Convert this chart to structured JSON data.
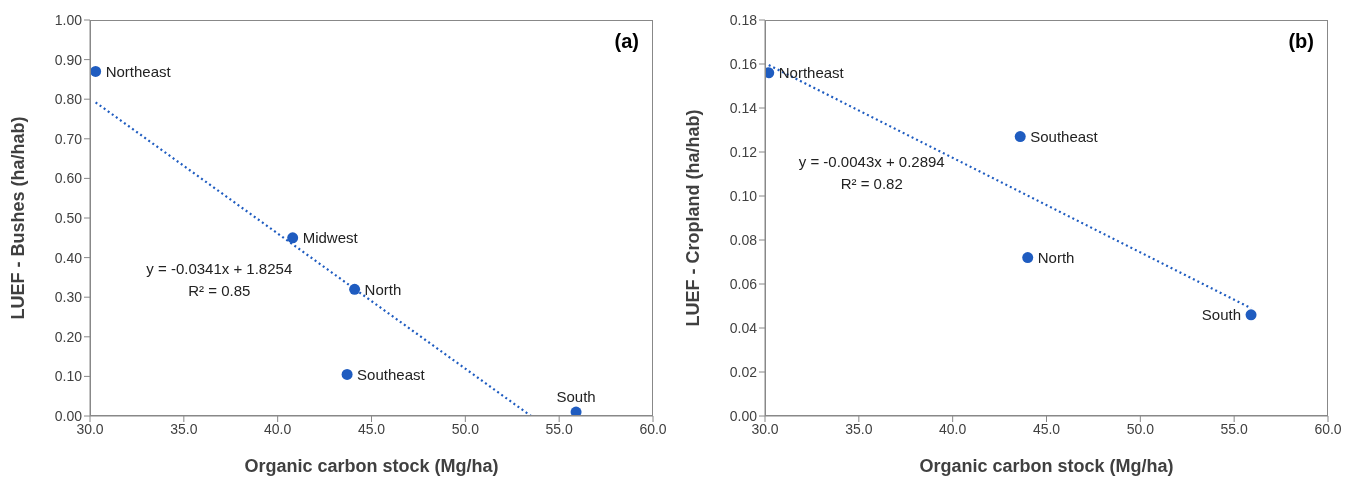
{
  "chart_data": [
    {
      "type": "scatter",
      "title": "(a)",
      "xlabel": "Organic carbon stock (Mg/ha)",
      "ylabel": "LUEF - Bushes (ha/hab)",
      "marker": "circle",
      "xlim": [
        30,
        60
      ],
      "xticks": [
        {
          "value": 30,
          "label": "30.0"
        },
        {
          "value": 35,
          "label": "35.0"
        },
        {
          "value": 40,
          "label": "40.0"
        },
        {
          "value": 45,
          "label": "45.0"
        },
        {
          "value": 50,
          "label": "50.0"
        },
        {
          "value": 55,
          "label": "55.0"
        },
        {
          "value": 60,
          "label": "60.0"
        }
      ],
      "ylim": [
        0,
        1
      ],
      "yticks": [
        {
          "value": 0,
          "label": "0.00"
        },
        {
          "value": 0.1,
          "label": "0.10"
        },
        {
          "value": 0.2,
          "label": "0.20"
        },
        {
          "value": 0.3,
          "label": "0.30"
        },
        {
          "value": 0.4,
          "label": "0.40"
        },
        {
          "value": 0.5,
          "label": "0.50"
        },
        {
          "value": 0.6,
          "label": "0.60"
        },
        {
          "value": 0.7,
          "label": "0.70"
        },
        {
          "value": 0.8,
          "label": "0.80"
        },
        {
          "value": 0.9,
          "label": "0.90"
        },
        {
          "value": 1,
          "label": "1.00"
        }
      ],
      "series": [
        {
          "type": "scatter",
          "color": "#1f5cc0",
          "x": [
            30.3,
            40.8,
            44.1,
            43.7,
            55.9
          ],
          "values": [
            0.87,
            0.45,
            0.32,
            0.105,
            0.01
          ]
        },
        {
          "type": "line",
          "color": "#1f5cc0",
          "line_style": "dotted",
          "marker": "none",
          "x": [
            30.3,
            53.5
          ],
          "values": [
            0.792,
            0
          ]
        }
      ],
      "annotations": [
        {
          "text": "Northeast",
          "x": 30.3,
          "y": 0.87
        },
        {
          "text": "Midwest",
          "x": 40.8,
          "y": 0.45
        },
        {
          "text": "North",
          "x": 44.1,
          "y": 0.32
        },
        {
          "text": "Southeast",
          "x": 43.7,
          "y": 0.105
        },
        {
          "text": "South",
          "x": 55.9,
          "y": 0.01
        },
        "y = -0.0341x + 1.8254",
        "R² = 0.85"
      ]
    },
    {
      "type": "scatter",
      "title": "(b)",
      "xlabel": "Organic carbon stock (Mg/ha)",
      "ylabel": "LUEF - Cropland (ha/hab)",
      "marker": "circle",
      "xlim": [
        30,
        60
      ],
      "xticks": [
        {
          "value": 30,
          "label": "30.0"
        },
        {
          "value": 35,
          "label": "35.0"
        },
        {
          "value": 40,
          "label": "40.0"
        },
        {
          "value": 45,
          "label": "45.0"
        },
        {
          "value": 50,
          "label": "50.0"
        },
        {
          "value": 55,
          "label": "55.0"
        },
        {
          "value": 60,
          "label": "60.0"
        }
      ],
      "ylim": [
        0,
        0.18
      ],
      "yticks": [
        {
          "value": 0,
          "label": "0.00"
        },
        {
          "value": 0.02,
          "label": "0.02"
        },
        {
          "value": 0.04,
          "label": "0.04"
        },
        {
          "value": 0.06,
          "label": "0.06"
        },
        {
          "value": 0.08,
          "label": "0.08"
        },
        {
          "value": 0.1,
          "label": "0.10"
        },
        {
          "value": 0.12,
          "label": "0.12"
        },
        {
          "value": 0.14,
          "label": "0.14"
        },
        {
          "value": 0.16,
          "label": "0.16"
        },
        {
          "value": 0.18,
          "label": "0.18"
        }
      ],
      "series": [
        {
          "type": "scatter",
          "color": "#1f5cc0",
          "x": [
            30.2,
            43.6,
            44.0,
            55.9
          ],
          "values": [
            0.156,
            0.127,
            0.072,
            0.046
          ]
        },
        {
          "type": "line",
          "color": "#1f5cc0",
          "line_style": "dotted",
          "marker": "none",
          "x": [
            30.2,
            55.9
          ],
          "values": [
            0.1595,
            0.049
          ]
        }
      ],
      "annotations": [
        {
          "text": "Northeast",
          "x": 30.2,
          "y": 0.156
        },
        {
          "text": "Southeast",
          "x": 43.6,
          "y": 0.127
        },
        {
          "text": "North",
          "x": 44.0,
          "y": 0.072
        },
        {
          "text": "South",
          "x": 55.9,
          "y": 0.046
        },
        "y = -0.0043x + 0.2894",
        "R² = 0.82"
      ]
    }
  ]
}
